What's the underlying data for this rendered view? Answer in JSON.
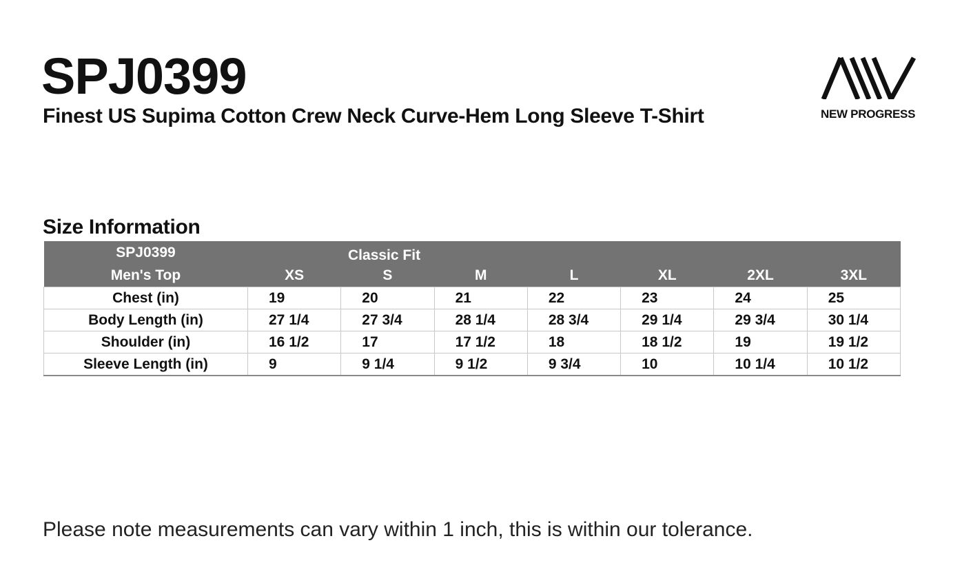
{
  "product_code": "SPJ0399",
  "product_name": "Finest US Supima Cotton Crew Neck Curve-Hem Long Sleeve T-Shirt",
  "brand": {
    "logo_text": "NEW PROGRESS",
    "logo_icon": "aiv-stripes-logo"
  },
  "section_title": "Size Information",
  "table": {
    "header_code": "SPJ0399",
    "header_fit": "Classic Fit",
    "header_category": "Men's Top",
    "sizes": [
      "XS",
      "S",
      "M",
      "L",
      "XL",
      "2XL",
      "3XL"
    ],
    "rows": [
      {
        "label": "Chest (in)",
        "values": [
          "19",
          "20",
          "21",
          "22",
          "23",
          "24",
          "25"
        ]
      },
      {
        "label": "Body Length (in)",
        "values": [
          "27 1/4",
          "27 3/4",
          "28 1/4",
          "28 3/4",
          "29 1/4",
          "29 3/4",
          "30 1/4"
        ]
      },
      {
        "label": "Shoulder (in)",
        "values": [
          "16 1/2",
          "17",
          "17 1/2",
          "18",
          "18 1/2",
          "19",
          "19 1/2"
        ]
      },
      {
        "label": "Sleeve Length (in)",
        "values": [
          "9",
          "9 1/4",
          "9 1/2",
          "9 3/4",
          "10",
          "10 1/4",
          "10 1/2"
        ]
      }
    ]
  },
  "note": "Please note measurements can vary within 1 inch, this is within our tolerance.",
  "colors": {
    "header_bg": "#737373",
    "text": "#111111"
  }
}
